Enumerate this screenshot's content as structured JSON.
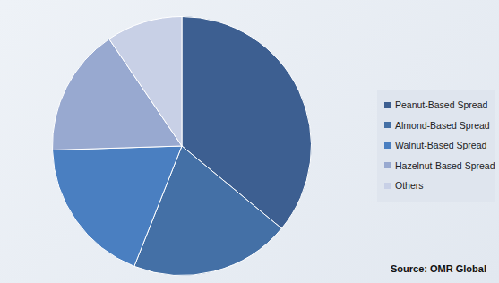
{
  "chart_data": {
    "type": "pie",
    "categories": [
      "Peanut-Based Spread",
      "Almond-Based Spread",
      "Walnut-Based Spread",
      "Hazelnut-Based Spread",
      "Others"
    ],
    "values": [
      36,
      20,
      18.5,
      16,
      9.5
    ],
    "colors": [
      "#3d5f91",
      "#4470a6",
      "#4a7fc1",
      "#98a9d0",
      "#c8d0e6"
    ],
    "legend": "right",
    "source": "Source: OMR Global"
  }
}
